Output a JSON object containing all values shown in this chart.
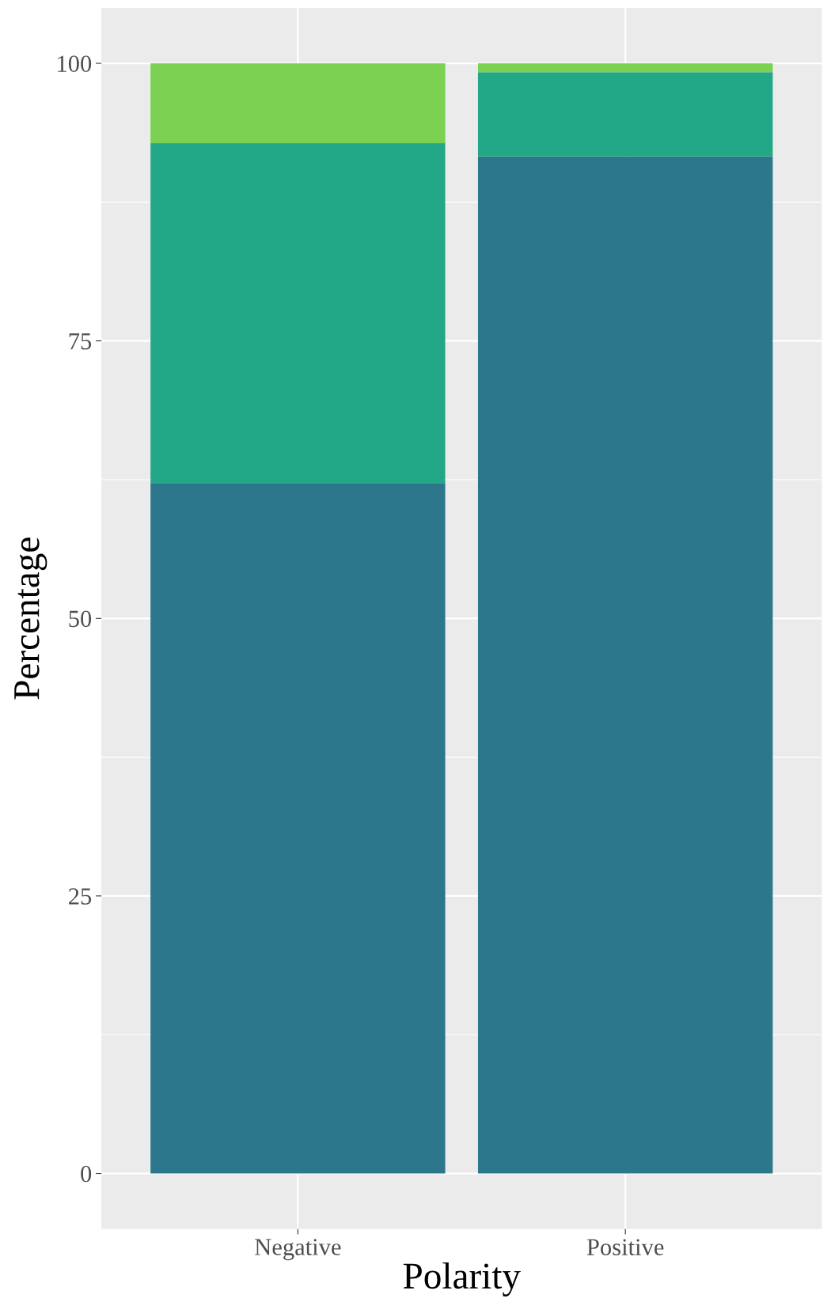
{
  "chart_data": {
    "type": "bar",
    "stacked": true,
    "xlabel": "Polarity",
    "ylabel": "Percentage",
    "categories": [
      "Negative",
      "Positive"
    ],
    "series": [
      {
        "color": "#2c778c",
        "values": [
          62.2,
          91.6
        ]
      },
      {
        "color": "#22a886",
        "values": [
          30.6,
          7.6
        ]
      },
      {
        "color": "#7ad152",
        "values": [
          7.2,
          0.8
        ]
      }
    ],
    "ylim": [
      -5,
      105
    ],
    "yticks": [
      0,
      25,
      50,
      75,
      100
    ],
    "grid": true
  }
}
